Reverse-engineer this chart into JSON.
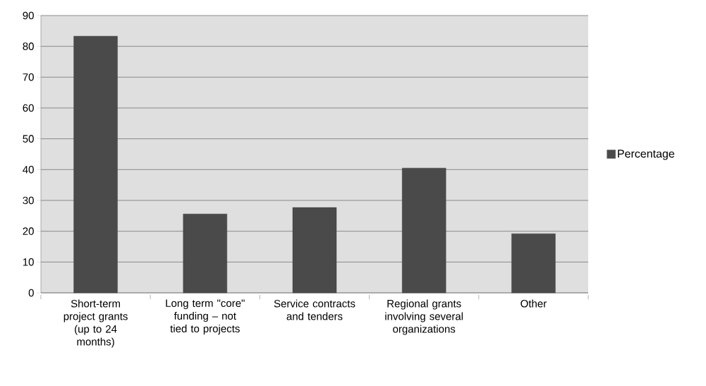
{
  "chart_data": {
    "type": "bar",
    "categories": [
      "Short-term project grants (up to 24 months)",
      "Long term \"core\" funding – not tied to projects",
      "Service contracts and tenders",
      "Regional grants involving several organizations",
      "Other"
    ],
    "series": [
      {
        "name": "Percentage",
        "color": "#4a4a4a",
        "values": [
          83.3,
          25.6,
          27.7,
          40.5,
          19.2
        ]
      }
    ],
    "ylim": [
      0,
      90
    ],
    "yticks": [
      0,
      10,
      20,
      30,
      40,
      50,
      60,
      70,
      80,
      90
    ],
    "grid": "y",
    "legend": "right"
  }
}
